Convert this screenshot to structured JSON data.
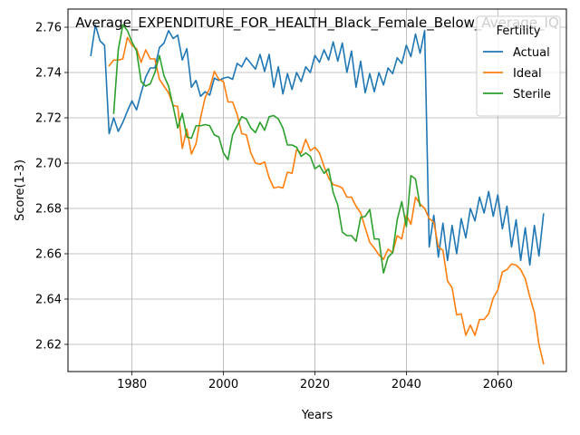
{
  "chart_data": {
    "type": "line",
    "title": "Average_EXPENDITURE_FOR_HEALTH_Black_Female_Below_Average_IQ",
    "xlabel": "Years",
    "ylabel": "Score(1-3)",
    "xlim": [
      1966,
      2075
    ],
    "ylim": [
      2.608,
      2.768
    ],
    "x_ticks": [
      1980,
      2000,
      2020,
      2040,
      2060
    ],
    "y_ticks": [
      2.62,
      2.64,
      2.66,
      2.68,
      2.7,
      2.72,
      2.74,
      2.76
    ],
    "y_tick_labels": [
      "2.62",
      "2.64",
      "2.66",
      "2.68",
      "2.70",
      "2.72",
      "2.74",
      "2.76"
    ],
    "x_tick_labels": [
      "1980",
      "2000",
      "2020",
      "2040",
      "2060"
    ],
    "grid": true,
    "legend": {
      "title": "Fertility",
      "placement": "top-right",
      "entries": [
        "Actual",
        "Ideal",
        "Sterile"
      ]
    },
    "series": [
      {
        "name": "Actual",
        "color": "#1f77b4",
        "points": [
          [
            1971,
            2.7475
          ],
          [
            1972,
            2.761
          ],
          [
            1973,
            2.754
          ],
          [
            1974,
            2.752
          ],
          [
            1975,
            2.713
          ],
          [
            1976,
            2.72
          ],
          [
            1977,
            2.714
          ],
          [
            1978,
            2.718
          ],
          [
            1979,
            2.723
          ],
          [
            1980,
            2.7275
          ],
          [
            1981,
            2.7235
          ],
          [
            1982,
            2.731
          ],
          [
            1983,
            2.738
          ],
          [
            1984,
            2.742
          ],
          [
            1985,
            2.742
          ],
          [
            1986,
            2.751
          ],
          [
            1987,
            2.753
          ],
          [
            1988,
            2.7585
          ],
          [
            1989,
            2.755
          ],
          [
            1990,
            2.7565
          ],
          [
            1991,
            2.7455
          ],
          [
            1992,
            2.7505
          ],
          [
            1993,
            2.7335
          ],
          [
            1994,
            2.7365
          ],
          [
            1995,
            2.7295
          ],
          [
            1996,
            2.7315
          ],
          [
            1997,
            2.73
          ],
          [
            1998,
            2.7375
          ],
          [
            1999,
            2.7365
          ],
          [
            2000,
            2.7375
          ],
          [
            2001,
            2.738
          ],
          [
            2002,
            2.737
          ],
          [
            2003,
            2.744
          ],
          [
            2004,
            2.7425
          ],
          [
            2005,
            2.7465
          ],
          [
            2006,
            2.744
          ],
          [
            2007,
            2.7415
          ],
          [
            2008,
            2.748
          ],
          [
            2009,
            2.7405
          ],
          [
            2010,
            2.748
          ],
          [
            2011,
            2.7335
          ],
          [
            2012,
            2.7425
          ],
          [
            2013,
            2.7305
          ],
          [
            2014,
            2.7395
          ],
          [
            2015,
            2.7325
          ],
          [
            2016,
            2.74
          ],
          [
            2017,
            2.736
          ],
          [
            2018,
            2.7425
          ],
          [
            2019,
            2.74
          ],
          [
            2020,
            2.7475
          ],
          [
            2021,
            2.7445
          ],
          [
            2022,
            2.75
          ],
          [
            2023,
            2.7455
          ],
          [
            2024,
            2.7535
          ],
          [
            2025,
            2.745
          ],
          [
            2026,
            2.753
          ],
          [
            2027,
            2.74
          ],
          [
            2028,
            2.7495
          ],
          [
            2029,
            2.7335
          ],
          [
            2030,
            2.745
          ],
          [
            2031,
            2.731
          ],
          [
            2032,
            2.7395
          ],
          [
            2033,
            2.7315
          ],
          [
            2034,
            2.74
          ],
          [
            2035,
            2.7345
          ],
          [
            2036,
            2.742
          ],
          [
            2037,
            2.7395
          ],
          [
            2038,
            2.7465
          ],
          [
            2039,
            2.744
          ],
          [
            2040,
            2.752
          ],
          [
            2041,
            2.747
          ],
          [
            2042,
            2.757
          ],
          [
            2043,
            2.7485
          ],
          [
            2044,
            2.7585
          ],
          [
            2045,
            2.663
          ],
          [
            2046,
            2.677
          ],
          [
            2047,
            2.6585
          ],
          [
            2048,
            2.6735
          ],
          [
            2049,
            2.657
          ],
          [
            2050,
            2.6725
          ],
          [
            2051,
            2.66
          ],
          [
            2052,
            2.6755
          ],
          [
            2053,
            2.667
          ],
          [
            2054,
            2.68
          ],
          [
            2055,
            2.6745
          ],
          [
            2056,
            2.685
          ],
          [
            2057,
            2.678
          ],
          [
            2058,
            2.6875
          ],
          [
            2059,
            2.6765
          ],
          [
            2060,
            2.686
          ],
          [
            2061,
            2.671
          ],
          [
            2062,
            2.681
          ],
          [
            2063,
            2.663
          ],
          [
            2064,
            2.675
          ],
          [
            2065,
            2.657
          ],
          [
            2066,
            2.6715
          ],
          [
            2067,
            2.655
          ],
          [
            2068,
            2.6725
          ],
          [
            2069,
            2.659
          ],
          [
            2070,
            2.6775
          ]
        ]
      },
      {
        "name": "Ideal",
        "color": "#ff7f0e",
        "points": [
          [
            1975,
            2.743
          ],
          [
            1976,
            2.7455
          ],
          [
            1977,
            2.7455
          ],
          [
            1978,
            2.746
          ],
          [
            1979,
            2.7555
          ],
          [
            1980,
            2.752
          ],
          [
            1981,
            2.7505
          ],
          [
            1982,
            2.7445
          ],
          [
            1983,
            2.75
          ],
          [
            1984,
            2.746
          ],
          [
            1985,
            2.746
          ],
          [
            1986,
            2.737
          ],
          [
            1987,
            2.734
          ],
          [
            1988,
            2.731
          ],
          [
            1989,
            2.7255
          ],
          [
            1990,
            2.725
          ],
          [
            1991,
            2.7065
          ],
          [
            1992,
            2.715
          ],
          [
            1993,
            2.704
          ],
          [
            1994,
            2.7085
          ],
          [
            1995,
            2.72
          ],
          [
            1996,
            2.729
          ],
          [
            1997,
            2.733
          ],
          [
            1998,
            2.7405
          ],
          [
            1999,
            2.737
          ],
          [
            2000,
            2.736
          ],
          [
            2001,
            2.727
          ],
          [
            2002,
            2.727
          ],
          [
            2003,
            2.7215
          ],
          [
            2004,
            2.713
          ],
          [
            2005,
            2.7125
          ],
          [
            2006,
            2.7045
          ],
          [
            2007,
            2.7
          ],
          [
            2008,
            2.6995
          ],
          [
            2009,
            2.7005
          ],
          [
            2010,
            2.6935
          ],
          [
            2011,
            2.689
          ],
          [
            2012,
            2.6895
          ],
          [
            2013,
            2.689
          ],
          [
            2014,
            2.696
          ],
          [
            2015,
            2.6955
          ],
          [
            2016,
            2.706
          ],
          [
            2017,
            2.7045
          ],
          [
            2018,
            2.7105
          ],
          [
            2019,
            2.7055
          ],
          [
            2020,
            2.707
          ],
          [
            2021,
            2.7045
          ],
          [
            2022,
            2.6985
          ],
          [
            2023,
            2.6935
          ],
          [
            2024,
            2.6905
          ],
          [
            2025,
            2.69
          ],
          [
            2026,
            2.689
          ],
          [
            2027,
            2.685
          ],
          [
            2028,
            2.685
          ],
          [
            2029,
            2.681
          ],
          [
            2030,
            2.678
          ],
          [
            2031,
            2.6715
          ],
          [
            2032,
            2.665
          ],
          [
            2033,
            2.6625
          ],
          [
            2034,
            2.6595
          ],
          [
            2035,
            2.6575
          ],
          [
            2036,
            2.662
          ],
          [
            2037,
            2.6605
          ],
          [
            2038,
            2.668
          ],
          [
            2039,
            2.6665
          ],
          [
            2040,
            2.677
          ],
          [
            2041,
            2.673
          ],
          [
            2042,
            2.685
          ],
          [
            2043,
            2.682
          ],
          [
            2044,
            2.68
          ],
          [
            2045,
            2.6755
          ],
          [
            2046,
            2.674
          ],
          [
            2047,
            2.663
          ],
          [
            2048,
            2.6615
          ],
          [
            2049,
            2.648
          ],
          [
            2050,
            2.645
          ],
          [
            2051,
            2.633
          ],
          [
            2052,
            2.6335
          ],
          [
            2053,
            2.624
          ],
          [
            2054,
            2.6285
          ],
          [
            2055,
            2.624
          ],
          [
            2056,
            2.631
          ],
          [
            2057,
            2.631
          ],
          [
            2058,
            2.6335
          ],
          [
            2059,
            2.6405
          ],
          [
            2060,
            2.644
          ],
          [
            2061,
            2.652
          ],
          [
            2062,
            2.653
          ],
          [
            2063,
            2.6555
          ],
          [
            2064,
            2.655
          ],
          [
            2065,
            2.653
          ],
          [
            2066,
            2.649
          ],
          [
            2067,
            2.641
          ],
          [
            2068,
            2.634
          ],
          [
            2069,
            2.62
          ],
          [
            2070,
            2.6115
          ]
        ]
      },
      {
        "name": "Sterile",
        "color": "#2ca02c",
        "points": [
          [
            1976,
            2.722
          ],
          [
            1977,
            2.75
          ],
          [
            1978,
            2.761
          ],
          [
            1979,
            2.7585
          ],
          [
            1980,
            2.7535
          ],
          [
            1981,
            2.7495
          ],
          [
            1982,
            2.736
          ],
          [
            1983,
            2.734
          ],
          [
            1984,
            2.735
          ],
          [
            1985,
            2.74
          ],
          [
            1986,
            2.7475
          ],
          [
            1987,
            2.7385
          ],
          [
            1988,
            2.734
          ],
          [
            1989,
            2.725
          ],
          [
            1990,
            2.7155
          ],
          [
            1991,
            2.722
          ],
          [
            1992,
            2.7115
          ],
          [
            1993,
            2.711
          ],
          [
            1994,
            2.7165
          ],
          [
            1995,
            2.7165
          ],
          [
            1996,
            2.717
          ],
          [
            1997,
            2.7165
          ],
          [
            1998,
            2.7125
          ],
          [
            1999,
            2.7115
          ],
          [
            2000,
            2.7045
          ],
          [
            2001,
            2.7015
          ],
          [
            2002,
            2.7125
          ],
          [
            2003,
            2.7165
          ],
          [
            2004,
            2.7205
          ],
          [
            2005,
            2.7195
          ],
          [
            2006,
            2.7155
          ],
          [
            2007,
            2.7135
          ],
          [
            2008,
            2.718
          ],
          [
            2009,
            2.7145
          ],
          [
            2010,
            2.7205
          ],
          [
            2011,
            2.721
          ],
          [
            2012,
            2.7195
          ],
          [
            2013,
            2.7155
          ],
          [
            2014,
            2.708
          ],
          [
            2015,
            2.708
          ],
          [
            2016,
            2.707
          ],
          [
            2017,
            2.703
          ],
          [
            2018,
            2.7045
          ],
          [
            2019,
            2.703
          ],
          [
            2020,
            2.6975
          ],
          [
            2021,
            2.699
          ],
          [
            2022,
            2.6955
          ],
          [
            2023,
            2.6975
          ],
          [
            2024,
            2.687
          ],
          [
            2025,
            2.6815
          ],
          [
            2026,
            2.6695
          ],
          [
            2027,
            2.668
          ],
          [
            2028,
            2.668
          ],
          [
            2029,
            2.6655
          ],
          [
            2030,
            2.676
          ],
          [
            2031,
            2.6765
          ],
          [
            2032,
            2.6795
          ],
          [
            2033,
            2.6665
          ],
          [
            2034,
            2.6665
          ],
          [
            2035,
            2.6515
          ],
          [
            2036,
            2.6585
          ],
          [
            2037,
            2.6605
          ],
          [
            2038,
            2.675
          ],
          [
            2039,
            2.683
          ],
          [
            2040,
            2.672
          ],
          [
            2041,
            2.6945
          ],
          [
            2042,
            2.693
          ],
          [
            2043,
            2.681
          ]
        ]
      }
    ]
  }
}
